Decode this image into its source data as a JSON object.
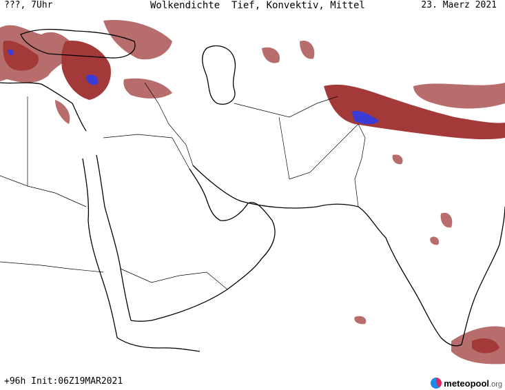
{
  "header": {
    "left": "???, 7Uhr",
    "title": "Wolkendichte  Tief, Konvektiv, Mittel",
    "date": "23. Maerz 2021"
  },
  "footer": {
    "run": "+96h Init:06Z19MAR2021"
  },
  "logo": {
    "name": "meteopool",
    "tld": ".org",
    "icon": "meteopool-logo-icon"
  },
  "colors": {
    "cloud_dense": "#a4393a",
    "cloud_light": "#b86d6d",
    "convective": "#3b3bd6"
  }
}
